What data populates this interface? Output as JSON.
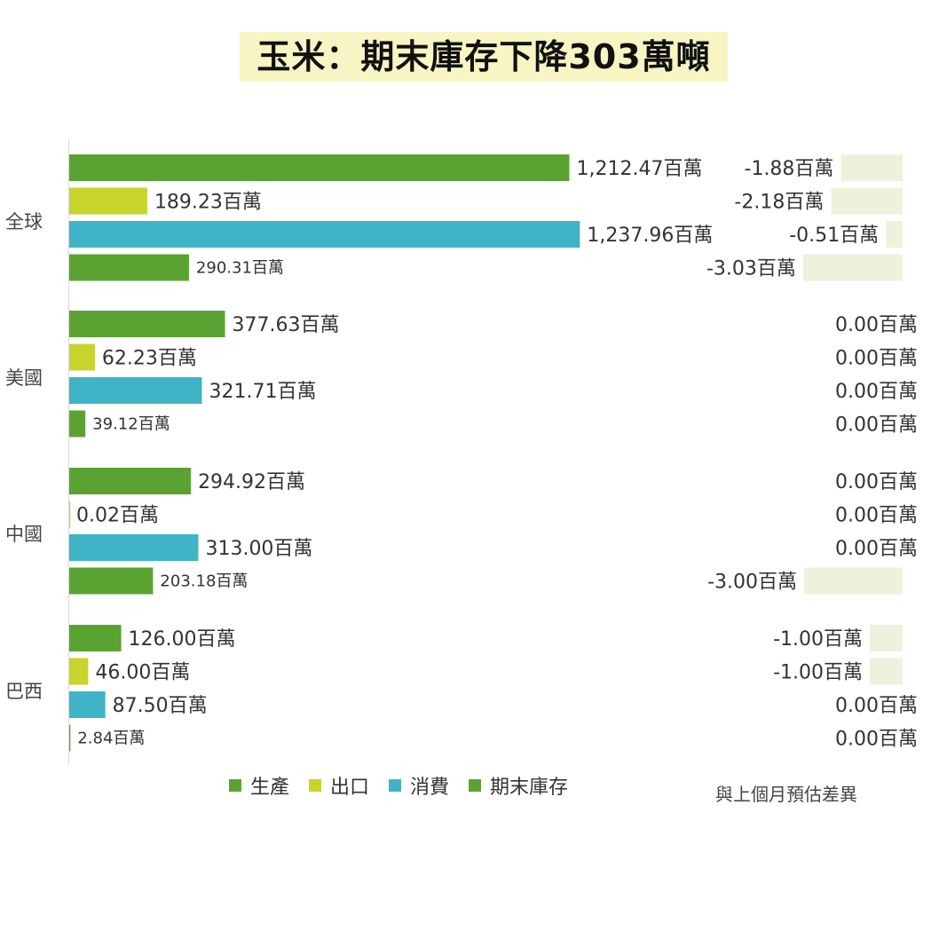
{
  "title": "玉米：期末庫存下降303萬噸",
  "colors": {
    "production": "#5aa332",
    "export": "#c7d42b",
    "consumption": "#3fb4c6",
    "ending_stock": "#5aa332",
    "diff_fill": "#eef2dc",
    "title_bg": "#f7f5c4"
  },
  "legend": {
    "production": "生產",
    "export": "出口",
    "consumption": "消費",
    "ending_stock": "期末庫存"
  },
  "diff_note": "與上個月預估差異",
  "chart_data": {
    "type": "bar",
    "orientation": "horizontal",
    "title": "玉米：期末庫存下降303萬噸",
    "unit": "百萬",
    "categories": [
      "全球",
      "美國",
      "中國",
      "巴西"
    ],
    "series": [
      {
        "name": "生產",
        "values": [
          1212.47,
          377.63,
          294.92,
          126.0
        ],
        "labels": [
          "1,212.47百萬",
          "377.63百萬",
          "294.92百萬",
          "126.00百萬"
        ]
      },
      {
        "name": "出口",
        "values": [
          189.23,
          62.23,
          0.02,
          46.0
        ],
        "labels": [
          "189.23百萬",
          "62.23百萬",
          "0.02百萬",
          "46.00百萬"
        ]
      },
      {
        "name": "消費",
        "values": [
          1237.96,
          321.71,
          313.0,
          87.5
        ],
        "labels": [
          "1,237.96百萬",
          "321.71百萬",
          "313.00百萬",
          "87.50百萬"
        ]
      },
      {
        "name": "期末庫存",
        "values": [
          290.31,
          39.12,
          203.18,
          2.84
        ],
        "labels": [
          "290.31百萬",
          "39.12百萬",
          "203.18百萬",
          "2.84百萬"
        ]
      }
    ],
    "diff_series": {
      "name": "與上個月預估差異",
      "values": [
        [
          -1.88,
          -2.18,
          -0.51,
          -3.03
        ],
        [
          0.0,
          0.0,
          0.0,
          0.0
        ],
        [
          0.0,
          0.0,
          0.0,
          -3.0
        ],
        [
          -1.0,
          -1.0,
          0.0,
          0.0
        ]
      ],
      "labels": [
        [
          "-1.88百萬",
          "-2.18百萬",
          "-0.51百萬",
          "-3.03百萬"
        ],
        [
          "0.00百萬",
          "0.00百萬",
          "0.00百萬",
          "0.00百萬"
        ],
        [
          "0.00百萬",
          "0.00百萬",
          "0.00百萬",
          "-3.00百萬"
        ],
        [
          "-1.00百萬",
          "-1.00百萬",
          "0.00百萬",
          "0.00百萬"
        ]
      ]
    },
    "xlim": [
      0,
      1300
    ],
    "grid": false,
    "legend_position": "bottom"
  }
}
